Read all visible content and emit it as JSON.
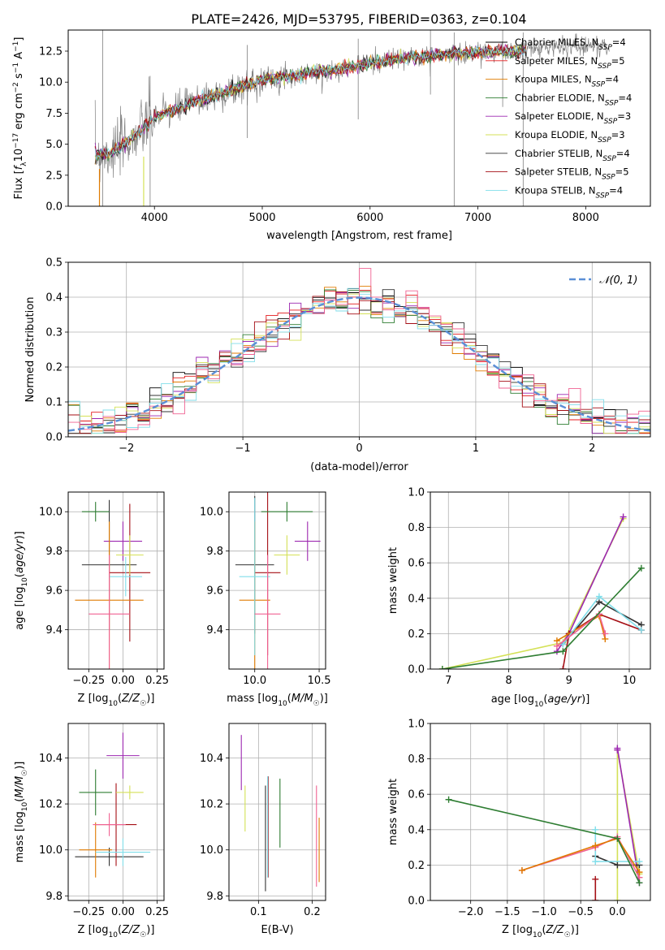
{
  "figure": {
    "title": "PLATE=2426, MJD=53795, FIBERID=0363, z=0.104"
  },
  "chart_data": [
    {
      "id": "spectrum",
      "type": "line",
      "title": "PLATE=2426, MJD=53795, FIBERID=0363, z=0.104",
      "xlabel": "wavelength [Angstrom, rest frame]",
      "ylabel": "Flux [f_λ 10⁻¹⁷ erg cm⁻² s⁻¹ A⁻¹]",
      "xlim": [
        3200,
        8600
      ],
      "ylim": [
        0,
        14.2
      ],
      "xticks": [
        "4000",
        "5000",
        "6000",
        "7000",
        "8000"
      ],
      "yticks": [
        "0.0",
        "2.5",
        "5.0",
        "7.5",
        "10.0",
        "12.5"
      ],
      "legend_position": "upper-right",
      "legend": [
        {
          "name": "Chabrier MILES, N_SSP=4",
          "color": "#000000"
        },
        {
          "name": "Salpeter MILES, N_SSP=5",
          "color": "#e41a1c"
        },
        {
          "name": "Kroupa MILES, N_SSP=4",
          "color": "#e07b00"
        },
        {
          "name": "Chabrier ELODIE, N_SSP=4",
          "color": "#2e7d32"
        },
        {
          "name": "Salpeter ELODIE, N_SSP=3",
          "color": "#9c27b0"
        },
        {
          "name": "Kroupa ELODIE, N_SSP=3",
          "color": "#d4e157"
        },
        {
          "name": "Chabrier STELIB, N_SSP=4",
          "color": "#333333"
        },
        {
          "name": "Salpeter STELIB, N_SSP=5",
          "color": "#a50f15"
        },
        {
          "name": "Kroupa STELIB, N_SSP=4",
          "color": "#80deea"
        }
      ],
      "continuum": {
        "x": [
          3450,
          3600,
          3700,
          3800,
          3900,
          4000,
          4200,
          4400,
          4600,
          4800,
          5000,
          5200,
          5400,
          5600,
          5800,
          6000,
          6200,
          6400,
          6600,
          6800,
          7000,
          7200,
          7400,
          7600,
          7800,
          8000,
          8200
        ],
        "y": [
          4.2,
          4.3,
          4.9,
          5.5,
          6.3,
          7.2,
          7.8,
          8.5,
          9.0,
          9.6,
          10.2,
          10.4,
          10.7,
          10.9,
          11.2,
          11.5,
          11.8,
          12.0,
          12.2,
          12.3,
          12.4,
          12.5,
          12.5,
          12.8,
          12.9,
          13.0,
          12.8
        ]
      },
      "data_color": "#808080"
    },
    {
      "id": "residuals",
      "type": "line",
      "xlabel": "(data-model)/error",
      "ylabel": "Normed distribution",
      "xlim": [
        -2.5,
        2.5
      ],
      "ylim": [
        0,
        0.5
      ],
      "xticks": [
        "−2",
        "−1",
        "0",
        "1",
        "2"
      ],
      "yticks": [
        "0.0",
        "0.1",
        "0.2",
        "0.3",
        "0.4",
        "0.5"
      ],
      "grid": true,
      "legend_position": "upper-right",
      "normal_label": "𝒩(0, 1)",
      "normal_color": "#5b8fd6"
    },
    {
      "id": "age-vs-Z",
      "type": "scatter",
      "xlabel": "Z [log10(Z/Z☉)]",
      "ylabel": "age  [log10(age/yr)]",
      "xlim": [
        -0.4,
        0.3
      ],
      "ylim": [
        9.2,
        10.1
      ],
      "xticks": [
        "−0.25",
        "0.00",
        "0.25"
      ],
      "yticks": [
        "9.4",
        "9.6",
        "9.8",
        "10.0"
      ],
      "points": [
        {
          "x": -0.1,
          "y": 9.73,
          "xerr": 0.2,
          "yerr": 0.33,
          "color": "#333333"
        },
        {
          "x": 0.05,
          "y": 9.69,
          "xerr": 0.15,
          "yerr": 0.35,
          "color": "#a50f15"
        },
        {
          "x": -0.2,
          "y": 10.0,
          "xerr": 0.1,
          "yerr": 0.05,
          "color": "#2e7d32"
        },
        {
          "x": 0.0,
          "y": 9.85,
          "xerr": 0.14,
          "yerr": 0.1,
          "color": "#9c27b0"
        },
        {
          "x": 0.05,
          "y": 9.78,
          "xerr": 0.1,
          "yerr": 0.1,
          "color": "#d4e157"
        },
        {
          "x": -0.1,
          "y": 9.55,
          "xerr": 0.25,
          "yerr": 0.4,
          "color": "#e07b00"
        },
        {
          "x": 0.02,
          "y": 9.67,
          "xerr": 0.12,
          "yerr": 0.1,
          "color": "#80deea"
        },
        {
          "x": -0.1,
          "y": 9.48,
          "xerr": 0.15,
          "yerr": 0.3,
          "color": "#f06292"
        }
      ]
    },
    {
      "id": "age-vs-mass",
      "type": "scatter",
      "xlabel": "mass [log10(M/M☉)]",
      "xlim": [
        9.8,
        10.55
      ],
      "ylim": [
        9.2,
        10.1
      ],
      "xticks": [
        "10.0",
        "10.5"
      ],
      "yticks": [
        "9.4",
        "9.6",
        "9.8",
        "10.0"
      ],
      "points": [
        {
          "x": 10.0,
          "y": 9.73,
          "xerr": 0.15,
          "yerr": 0.35,
          "color": "#333333"
        },
        {
          "x": 10.1,
          "y": 9.69,
          "xerr": 0.1,
          "yerr": 0.42,
          "color": "#a50f15"
        },
        {
          "x": 10.25,
          "y": 10.0,
          "xerr": 0.2,
          "yerr": 0.05,
          "color": "#2e7d32"
        },
        {
          "x": 10.41,
          "y": 9.85,
          "xerr": 0.1,
          "yerr": 0.1,
          "color": "#9c27b0"
        },
        {
          "x": 10.25,
          "y": 9.78,
          "xerr": 0.1,
          "yerr": 0.1,
          "color": "#d4e157"
        },
        {
          "x": 10.0,
          "y": 9.55,
          "xerr": 0.12,
          "yerr": 0.4,
          "color": "#e07b00"
        },
        {
          "x": 10.0,
          "y": 9.67,
          "xerr": 0.12,
          "yerr": 0.4,
          "color": "#80deea"
        },
        {
          "x": 10.1,
          "y": 9.48,
          "xerr": 0.1,
          "yerr": 0.3,
          "color": "#f06292"
        }
      ]
    },
    {
      "id": "massweight-vs-age",
      "type": "line",
      "xlabel": "age  [log10(age/yr)]",
      "ylabel": "mass weight",
      "xlim": [
        6.7,
        10.35
      ],
      "ylim": [
        0,
        1.0
      ],
      "xticks": [
        "7",
        "8",
        "9",
        "10"
      ],
      "yticks": [
        "0.0",
        "0.2",
        "0.4",
        "0.6",
        "0.8",
        "1.0"
      ],
      "grid": true,
      "series": [
        {
          "color": "#d4e157",
          "x": [
            6.9,
            8.9,
            9.9
          ],
          "y": [
            0.0,
            0.15,
            0.85
          ]
        },
        {
          "color": "#9c27b0",
          "x": [
            8.8,
            9.0,
            9.9
          ],
          "y": [
            0.1,
            0.2,
            0.86
          ]
        },
        {
          "color": "#333333",
          "x": [
            8.9,
            9.5,
            10.2
          ],
          "y": [
            0.14,
            0.38,
            0.25
          ]
        },
        {
          "color": "#a50f15",
          "x": [
            8.9,
            9.0,
            9.5,
            10.2
          ],
          "y": [
            0.0,
            0.2,
            0.31,
            0.22
          ]
        },
        {
          "color": "#e07b00",
          "x": [
            8.8,
            9.5,
            9.6
          ],
          "y": [
            0.16,
            0.3,
            0.17
          ]
        },
        {
          "color": "#80deea",
          "x": [
            8.9,
            9.5,
            10.2
          ],
          "y": [
            0.14,
            0.41,
            0.22
          ]
        },
        {
          "color": "#f06292",
          "x": [
            8.8,
            9.5,
            9.6
          ],
          "y": [
            0.13,
            0.31,
            0.2
          ]
        },
        {
          "color": "#2e7d32",
          "x": [
            6.9,
            8.9,
            10.2
          ],
          "y": [
            0.0,
            0.1,
            0.57
          ]
        }
      ]
    },
    {
      "id": "mass-vs-Z",
      "type": "scatter",
      "xlabel": "Z [log10(Z/Z☉)]",
      "ylabel": "mass [log10(M/M☉)]",
      "xlim": [
        -0.4,
        0.3
      ],
      "ylim": [
        9.78,
        10.55
      ],
      "xticks": [
        "−0.25",
        "0.00",
        "0.25"
      ],
      "yticks": [
        "9.8",
        "10.0",
        "10.2",
        "10.4"
      ],
      "points": [
        {
          "x": -0.1,
          "y": 9.97,
          "xerr": 0.25,
          "yerr": 0.04,
          "color": "#333333"
        },
        {
          "x": -0.05,
          "y": 10.11,
          "xerr": 0.15,
          "yerr": 0.18,
          "color": "#a50f15"
        },
        {
          "x": -0.2,
          "y": 10.25,
          "xerr": 0.12,
          "yerr": 0.1,
          "color": "#2e7d32"
        },
        {
          "x": 0.0,
          "y": 10.41,
          "xerr": 0.12,
          "yerr": 0.1,
          "color": "#9c27b0"
        },
        {
          "x": 0.05,
          "y": 10.25,
          "xerr": 0.1,
          "yerr": 0.03,
          "color": "#d4e157"
        },
        {
          "x": -0.2,
          "y": 10.0,
          "xerr": 0.12,
          "yerr": 0.12,
          "color": "#e07b00"
        },
        {
          "x": 0.0,
          "y": 9.99,
          "xerr": 0.2,
          "yerr": 0.06,
          "color": "#80deea"
        },
        {
          "x": -0.1,
          "y": 10.11,
          "xerr": 0.12,
          "yerr": 0.05,
          "color": "#f06292"
        }
      ]
    },
    {
      "id": "mass-vs-ebv",
      "type": "scatter",
      "xlabel": "E(B-V)",
      "xlim": [
        0.045,
        0.225
      ],
      "ylim": [
        9.78,
        10.55
      ],
      "xticks": [
        "0.1",
        "0.2"
      ],
      "yticks": [
        "9.8",
        "10.0",
        "10.2",
        "10.4"
      ],
      "points": [
        {
          "x": 0.113,
          "y": 10.05,
          "yerr": 0.23,
          "color": "#333333"
        },
        {
          "x": 0.118,
          "y": 10.1,
          "yerr": 0.22,
          "color": "#a50f15"
        },
        {
          "x": 0.14,
          "y": 10.16,
          "yerr": 0.15,
          "color": "#2e7d32"
        },
        {
          "x": 0.068,
          "y": 10.38,
          "yerr": 0.12,
          "color": "#9c27b0"
        },
        {
          "x": 0.075,
          "y": 10.18,
          "yerr": 0.1,
          "color": "#d4e157"
        },
        {
          "x": 0.213,
          "y": 10.0,
          "yerr": 0.14,
          "color": "#e07b00"
        },
        {
          "x": 0.117,
          "y": 10.1,
          "yerr": 0.22,
          "color": "#80deea"
        },
        {
          "x": 0.208,
          "y": 10.06,
          "yerr": 0.22,
          "color": "#f06292"
        }
      ]
    },
    {
      "id": "massweight-vs-Z",
      "type": "line",
      "xlabel": "Z [log10(Z/Z☉)]",
      "ylabel": "mass weight",
      "xlim": [
        -2.55,
        0.45
      ],
      "ylim": [
        0,
        1.0
      ],
      "xticks": [
        "−2.0",
        "−1.5",
        "−1.0",
        "−0.5",
        "0.0"
      ],
      "yticks": [
        "0.0",
        "0.2",
        "0.4",
        "0.6",
        "0.8",
        "1.0"
      ],
      "grid": true,
      "series": [
        {
          "color": "#a50f15",
          "x": [
            -0.3,
            -0.3
          ],
          "y": [
            0.0,
            0.12
          ]
        },
        {
          "color": "#d4e157",
          "x": [
            0.0,
            0.0,
            0.3
          ],
          "y": [
            0.0,
            0.85,
            0.15
          ]
        },
        {
          "color": "#9c27b0",
          "x": [
            0.0,
            0.0,
            0.3
          ],
          "y": [
            0.85,
            0.86,
            0.1
          ]
        },
        {
          "color": "#333333",
          "x": [
            -0.3,
            0.0,
            0.3
          ],
          "y": [
            0.25,
            0.2,
            0.2
          ]
        },
        {
          "color": "#80deea",
          "x": [
            -0.3,
            -0.3,
            0.3
          ],
          "y": [
            0.4,
            0.22,
            0.22
          ]
        },
        {
          "color": "#f06292",
          "x": [
            -1.3,
            -0.3,
            0.0,
            0.3
          ],
          "y": [
            0.17,
            0.3,
            0.36,
            0.13
          ]
        },
        {
          "color": "#e07b00",
          "x": [
            -1.3,
            -0.3,
            0.0,
            0.3
          ],
          "y": [
            0.17,
            0.31,
            0.35,
            0.16
          ]
        },
        {
          "color": "#2e7d32",
          "x": [
            -2.3,
            0.0,
            0.3
          ],
          "y": [
            0.57,
            0.35,
            0.1
          ]
        }
      ]
    }
  ]
}
